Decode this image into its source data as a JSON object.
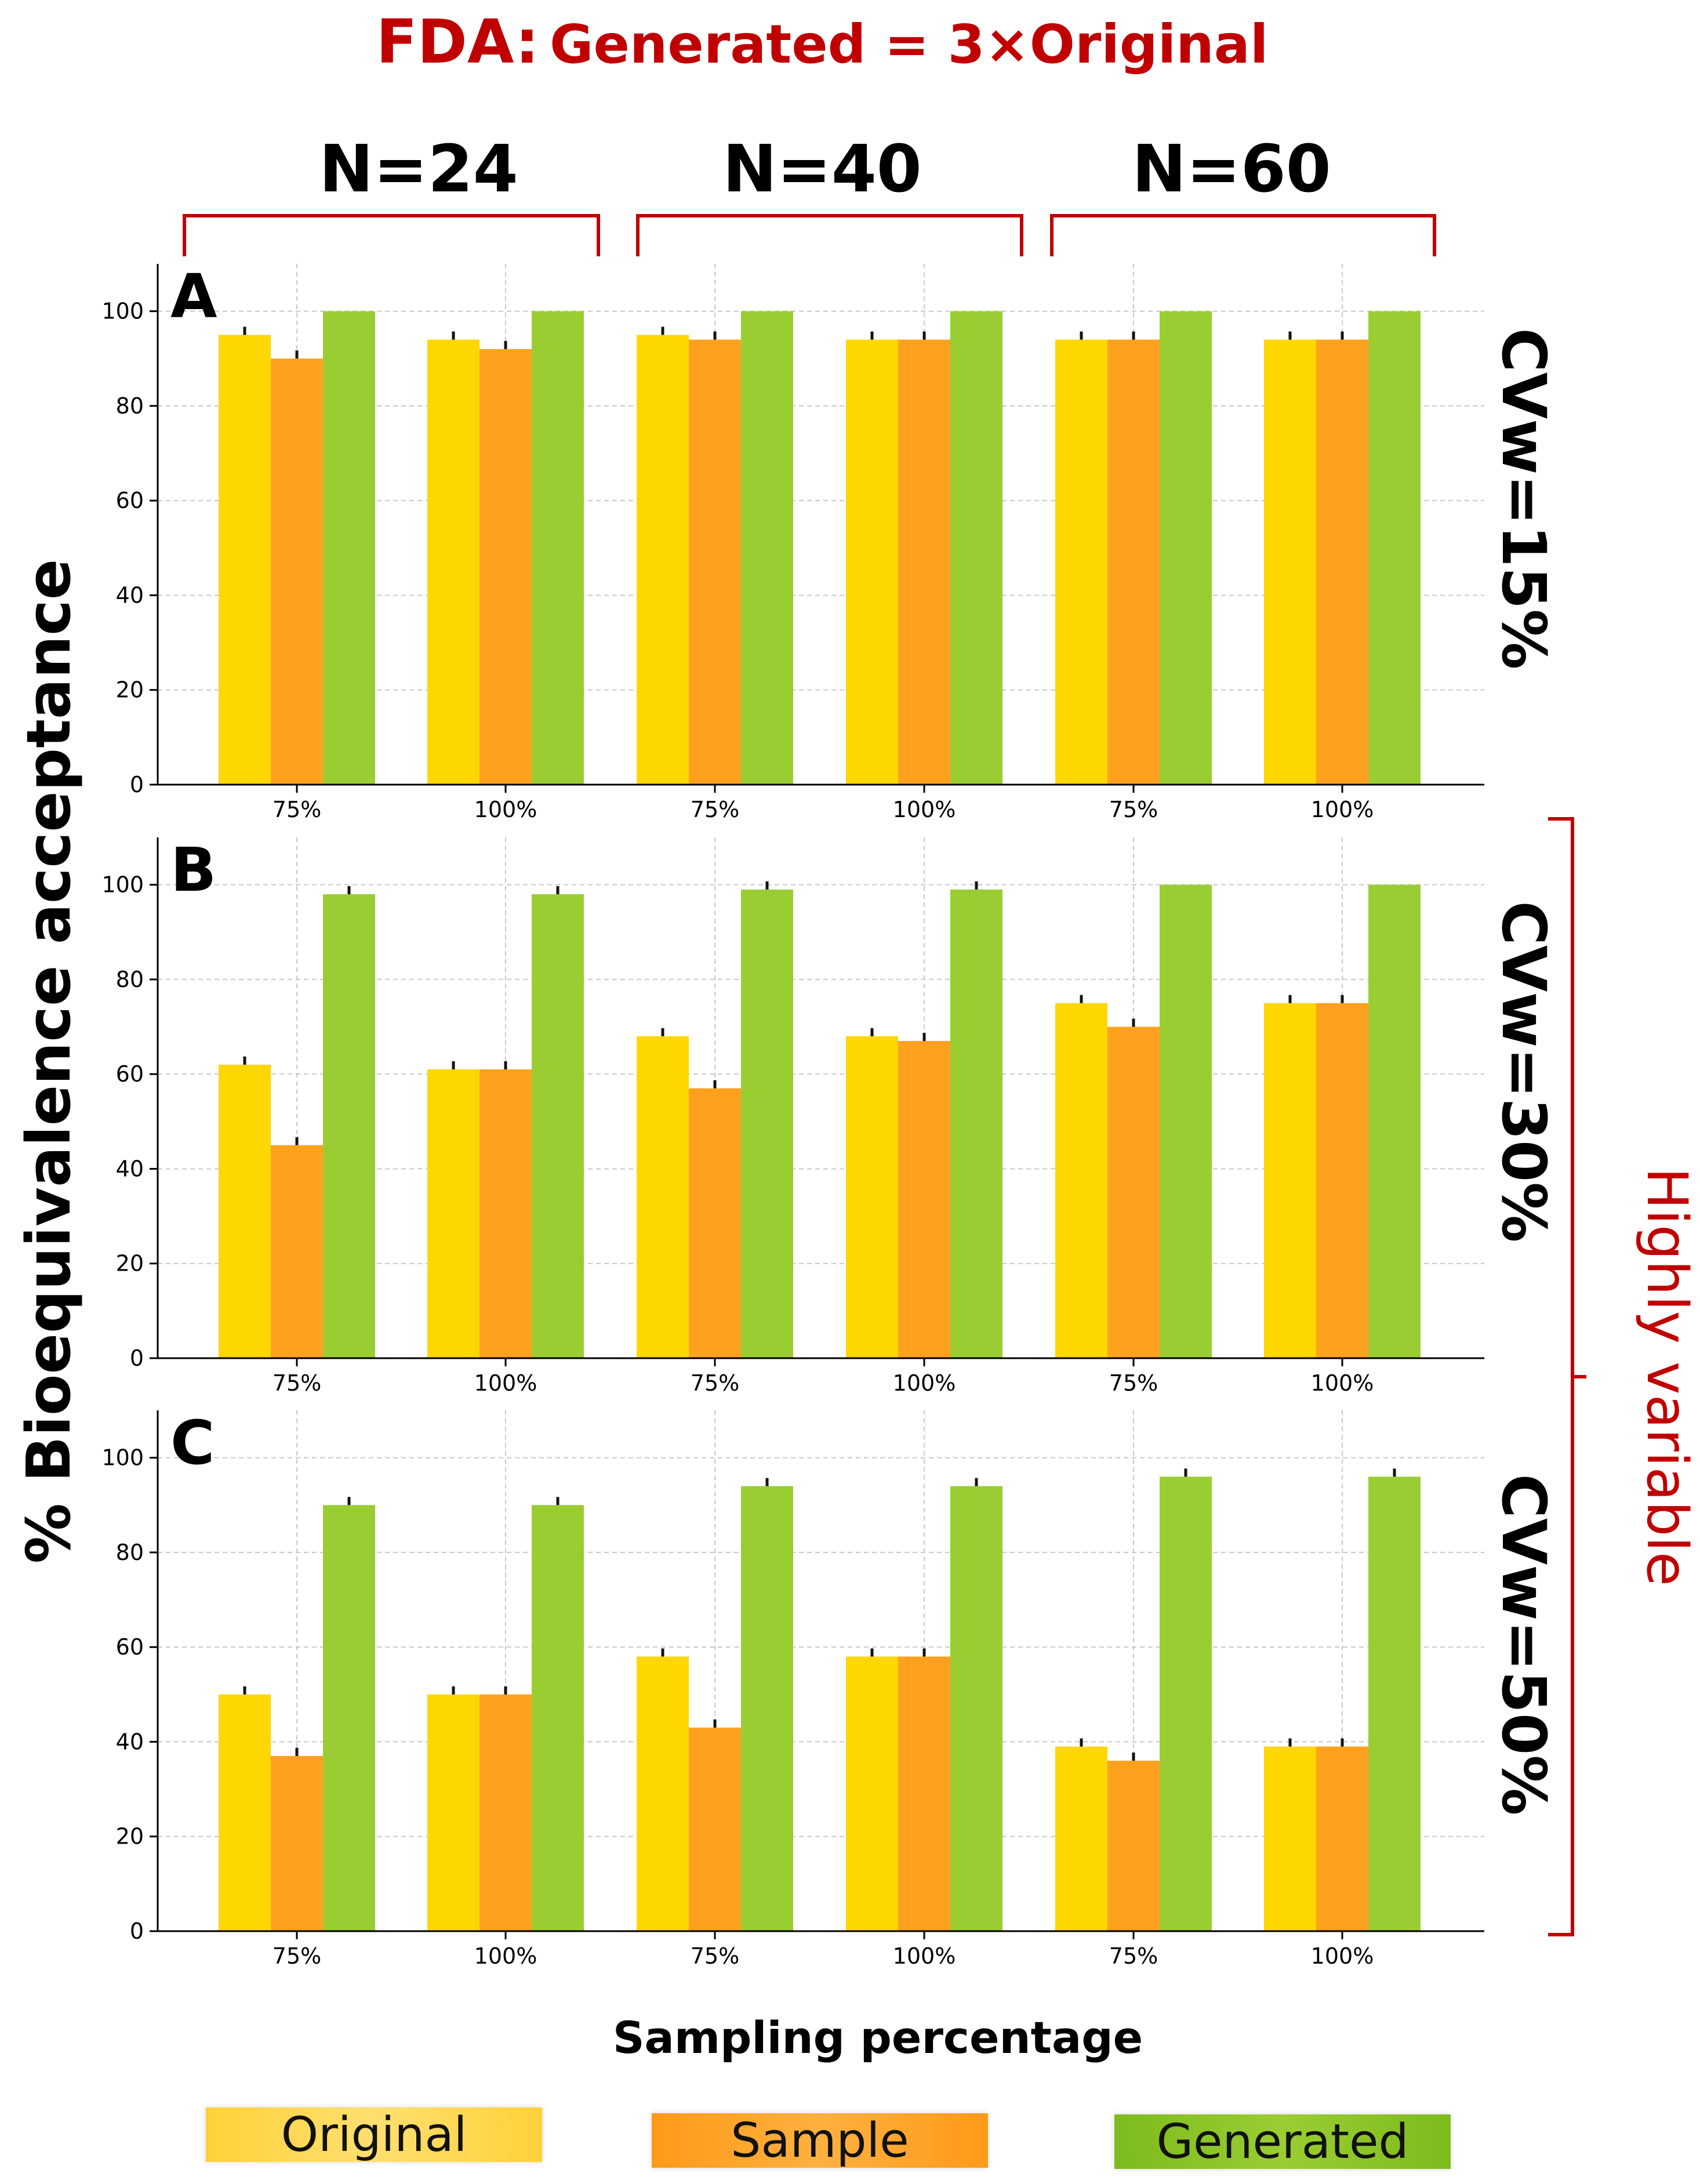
{
  "title": {
    "prefix": "FDA:",
    "rest": "Generated = 3×Original"
  },
  "group_labels": [
    "N=24",
    "N=40",
    "N=60"
  ],
  "row_labels": [
    "CVw=15%",
    "CVw=30%",
    "CVw=50%"
  ],
  "highly_variable_label": "Highly variable",
  "y_axis_label": "% Bioequivalence acceptance",
  "x_axis_label": "Sampling percentage",
  "legend": {
    "original": "Original",
    "sample": "Sample",
    "generated": "Generated"
  },
  "colors": {
    "original": "#FFD700",
    "sample": "#FFA11E",
    "generated": "#9ACD32",
    "red_accent": "#C00000",
    "grid": "#c8c8c8"
  },
  "chart_data": [
    {
      "type": "bar",
      "panel_letter": "A",
      "categories": [
        "75%",
        "100%",
        "75%",
        "100%",
        "75%",
        "100%"
      ],
      "ylim": [
        0,
        110
      ],
      "yticks": [
        0,
        20,
        40,
        60,
        80,
        100
      ],
      "series": [
        {
          "name": "Original",
          "values": [
            95,
            94,
            95,
            94,
            94,
            94
          ]
        },
        {
          "name": "Sample",
          "values": [
            90,
            92,
            94,
            94,
            94,
            94
          ]
        },
        {
          "name": "Generated",
          "values": [
            100,
            100,
            100,
            100,
            100,
            100
          ]
        }
      ]
    },
    {
      "type": "bar",
      "panel_letter": "B",
      "categories": [
        "75%",
        "100%",
        "75%",
        "100%",
        "75%",
        "100%"
      ],
      "ylim": [
        0,
        110
      ],
      "yticks": [
        0,
        20,
        40,
        60,
        80,
        100
      ],
      "series": [
        {
          "name": "Original",
          "values": [
            62,
            61,
            68,
            68,
            75,
            75
          ]
        },
        {
          "name": "Sample",
          "values": [
            45,
            61,
            57,
            67,
            70,
            75
          ]
        },
        {
          "name": "Generated",
          "values": [
            98,
            98,
            99,
            99,
            100,
            100
          ]
        }
      ]
    },
    {
      "type": "bar",
      "panel_letter": "C",
      "categories": [
        "75%",
        "100%",
        "75%",
        "100%",
        "75%",
        "100%"
      ],
      "ylim": [
        0,
        110
      ],
      "yticks": [
        0,
        20,
        40,
        60,
        80,
        100
      ],
      "series": [
        {
          "name": "Original",
          "values": [
            50,
            50,
            58,
            58,
            39,
            39
          ]
        },
        {
          "name": "Sample",
          "values": [
            37,
            50,
            43,
            58,
            36,
            39
          ]
        },
        {
          "name": "Generated",
          "values": [
            90,
            90,
            94,
            94,
            96,
            96
          ]
        }
      ]
    }
  ]
}
